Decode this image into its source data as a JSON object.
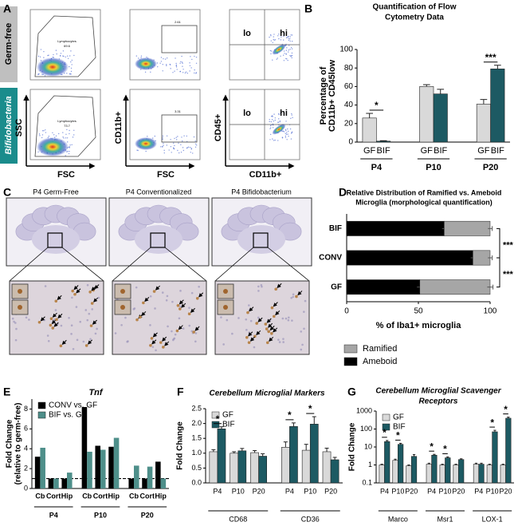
{
  "letters": [
    "A",
    "B",
    "C",
    "D",
    "E",
    "F",
    "G"
  ],
  "flow": {
    "rows": [
      "Germ-free",
      "Bifidobacteria"
    ],
    "axes": [
      "SSC",
      "FSC",
      "CD11b+",
      "FSC",
      "CD45+",
      "CD11b+"
    ],
    "gates": [
      "Lymphocytes",
      "69.6",
      "Lymphocytes",
      "73.7",
      "2.61",
      "3.31"
    ],
    "quadrants": [
      "lo",
      "hi",
      "lo",
      "hi"
    ]
  },
  "histology": {
    "titles": [
      "P4 Germ-Free",
      "P4 Conventionalized",
      "P4 Bifidobacterium"
    ]
  },
  "chart_data": [
    {
      "type": "bar",
      "title": [
        "Quantification of Flow",
        "Cytometry Data"
      ],
      "y_label": [
        "Percentage of",
        "CD11b+ CD45low"
      ],
      "categories": [
        "P4",
        "P10",
        "P20"
      ],
      "series": [
        {
          "name": "GF",
          "color": "#d9d9d9",
          "values": [
            26,
            60,
            41
          ],
          "errors": [
            5,
            2,
            5
          ]
        },
        {
          "name": "BIF",
          "color": "#1d5a63",
          "values": [
            1,
            52,
            79
          ],
          "errors": [
            0.5,
            5,
            4
          ]
        }
      ],
      "ylim": [
        0,
        100
      ],
      "yticks": [
        0,
        20,
        40,
        60,
        80,
        100
      ],
      "annotations": [
        "*",
        "***"
      ]
    },
    {
      "type": "barh",
      "title": [
        "Relative Distribution of Ramified vs.  Ameboid",
        "Microglia (morphological quantification)"
      ],
      "x_label": "% of Iba1+ microglia",
      "categories": [
        "BIF",
        "CONV",
        "GF"
      ],
      "series": [
        {
          "name": "Ramified",
          "color": "#a6a6a6",
          "values": [
            32,
            12,
            49
          ],
          "errors": [
            1.5,
            1.5,
            2
          ]
        },
        {
          "name": "Ameboid",
          "color": "#000000",
          "values": [
            68,
            88,
            51
          ],
          "errors": [
            1.5,
            1.5,
            2
          ]
        }
      ],
      "xlim": [
        0,
        100
      ],
      "xticks": [
        0,
        50,
        100
      ],
      "legend": "bottom",
      "annotations": [
        "***",
        "***"
      ]
    },
    {
      "type": "bar",
      "title": "Tnf",
      "y_label": [
        "Fold Change",
        "(relative to germ-free)"
      ],
      "categories": [
        "Cb",
        "Cort",
        "Hip",
        "Cb",
        "Cort",
        "Hip",
        "Cb",
        "Cort",
        "Hip"
      ],
      "groups": [
        "P4",
        "P10",
        "P20"
      ],
      "series": [
        {
          "name": "CONV vs. GF",
          "color": "#000000",
          "values": [
            3.2,
            1.0,
            1.0,
            8.2,
            4.3,
            4.2,
            1.0,
            1.0,
            2.7
          ]
        },
        {
          "name": "BIF vs. GF",
          "color": "#4e8f8a",
          "values": [
            4.1,
            1.0,
            1.6,
            3.7,
            3.9,
            5.1,
            2.3,
            2.2,
            1.0
          ]
        }
      ],
      "ylim": [
        0,
        9
      ],
      "yticks": [
        0,
        2,
        4,
        6,
        8
      ],
      "reference_line": 1,
      "legend": "top-left"
    },
    {
      "type": "bar",
      "title": "Cerebellum Microglial Markers",
      "y_label": [
        "Fold Change"
      ],
      "categories": [
        "P4",
        "P10",
        "P20",
        "P4",
        "P10",
        "P20"
      ],
      "groups": [
        "CD68",
        "CD36"
      ],
      "series": [
        {
          "name": "GF",
          "color": "#d9d9d9",
          "values": [
            1.05,
            1.0,
            1.02,
            1.2,
            1.1,
            1.05
          ],
          "errors": [
            0.07,
            0.05,
            0.07,
            0.18,
            0.2,
            0.12
          ]
        },
        {
          "name": "BIF",
          "color": "#1d5a63",
          "values": [
            1.82,
            1.08,
            0.9,
            1.9,
            1.98,
            0.78
          ],
          "errors": [
            0.07,
            0.08,
            0.08,
            0.12,
            0.25,
            0.08
          ]
        }
      ],
      "ylim": [
        0,
        2.5
      ],
      "yticks": [
        {
          "value": 0,
          "label": "0.0"
        },
        0.5,
        {
          "value": 1,
          "label": "1.0"
        },
        1.5,
        {
          "value": 2,
          "label": "2.0"
        },
        2.5
      ],
      "legend": "top-left",
      "annotations": [
        "*",
        "*",
        "*"
      ]
    },
    {
      "type": "bar",
      "title": [
        "Cerebellum Microglial Scavenger",
        "Receptors"
      ],
      "y_label": [
        "Fold Change"
      ],
      "categories": [
        "P4",
        "P10",
        "P20",
        "P4",
        "P10",
        "P20",
        "P4",
        "P10",
        "P20"
      ],
      "groups": [
        "Marco",
        "Msr1",
        "LOX-1"
      ],
      "series": [
        {
          "name": "GF",
          "color": "#d9d9d9",
          "values": [
            1.0,
            1.8,
            0.9,
            1.1,
            1.0,
            1.0,
            1.1,
            1.0,
            1.0
          ],
          "errors": [
            0.1,
            0.3,
            0.1,
            0.15,
            0.1,
            0.1,
            0.15,
            0.1,
            0.1
          ]
        },
        {
          "name": "BIF",
          "color": "#1d5a63",
          "values": [
            20,
            14,
            3,
            3.5,
            2.5,
            2.0,
            1.1,
            70,
            400
          ],
          "errors": [
            3,
            2,
            0.8,
            0.4,
            0.3,
            0.2,
            0.15,
            15,
            60
          ]
        }
      ],
      "log": true,
      "ylim": [
        0.1,
        1000
      ],
      "yticks": [
        0.1,
        1,
        10,
        100,
        1000
      ],
      "legend": "top-left",
      "annotations": [
        "*",
        "*",
        "*",
        "*",
        "*",
        "*"
      ]
    }
  ]
}
